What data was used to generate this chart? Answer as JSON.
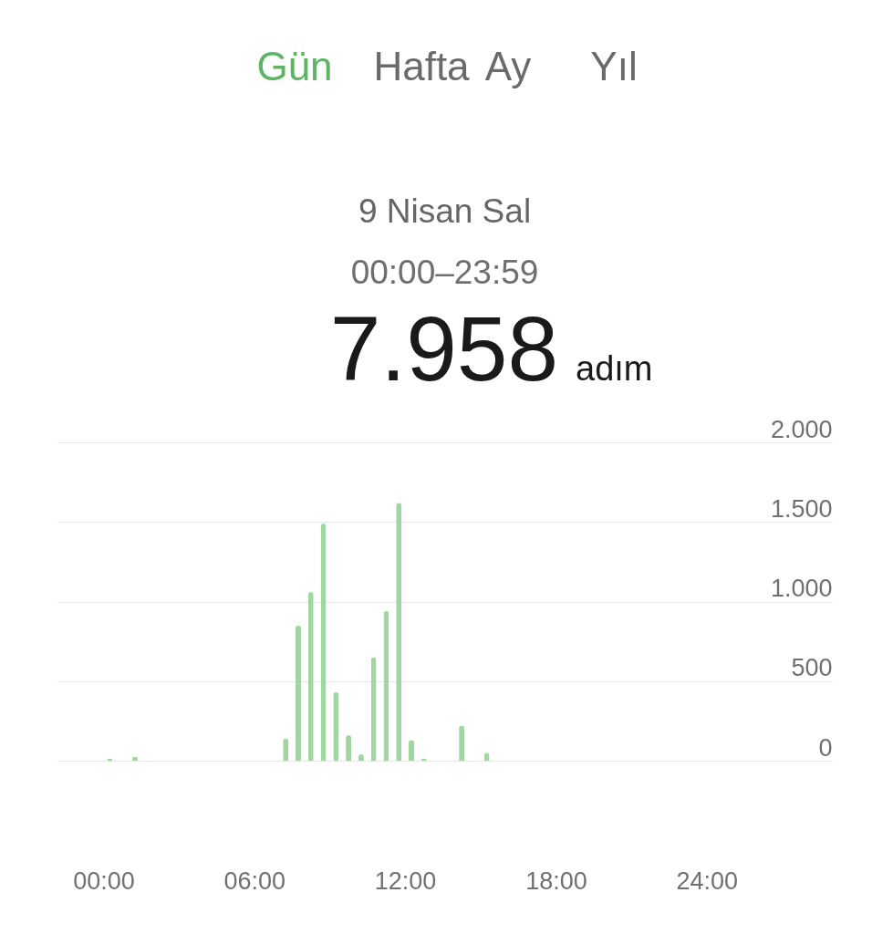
{
  "chart_data": {
    "type": "bar",
    "title": "9 Nisan Sal",
    "subtitle": "00:00–23:59",
    "annotations": [
      "Gün",
      "Hafta",
      "Ay",
      "Yıl",
      "7.958",
      "adım"
    ],
    "x": [
      0.25,
      1.25,
      7.25,
      7.75,
      8.25,
      8.75,
      9.25,
      9.75,
      10.25,
      10.75,
      11.25,
      11.75,
      12.25,
      12.75,
      14.25,
      15.25
    ],
    "values": [
      15,
      25,
      140,
      850,
      1060,
      1490,
      430,
      160,
      40,
      650,
      940,
      1620,
      130,
      15,
      220,
      50
    ],
    "color": "#a0d6a0",
    "xlim": [
      -1.65,
      28.8
    ],
    "xticks": [
      {
        "value": 0,
        "label": "00:00"
      },
      {
        "value": 6,
        "label": "06:00"
      },
      {
        "value": 12,
        "label": "12:00"
      },
      {
        "value": 18,
        "label": "18:00"
      },
      {
        "value": 24,
        "label": "24:00"
      }
    ],
    "ylim": [
      0,
      2000
    ],
    "yticks": [
      0,
      500,
      {
        "value": 1000,
        "label": "1.000"
      },
      {
        "value": 1500,
        "label": "1.500"
      },
      {
        "value": 2000,
        "label": "2.000"
      }
    ],
    "grid": "y"
  }
}
